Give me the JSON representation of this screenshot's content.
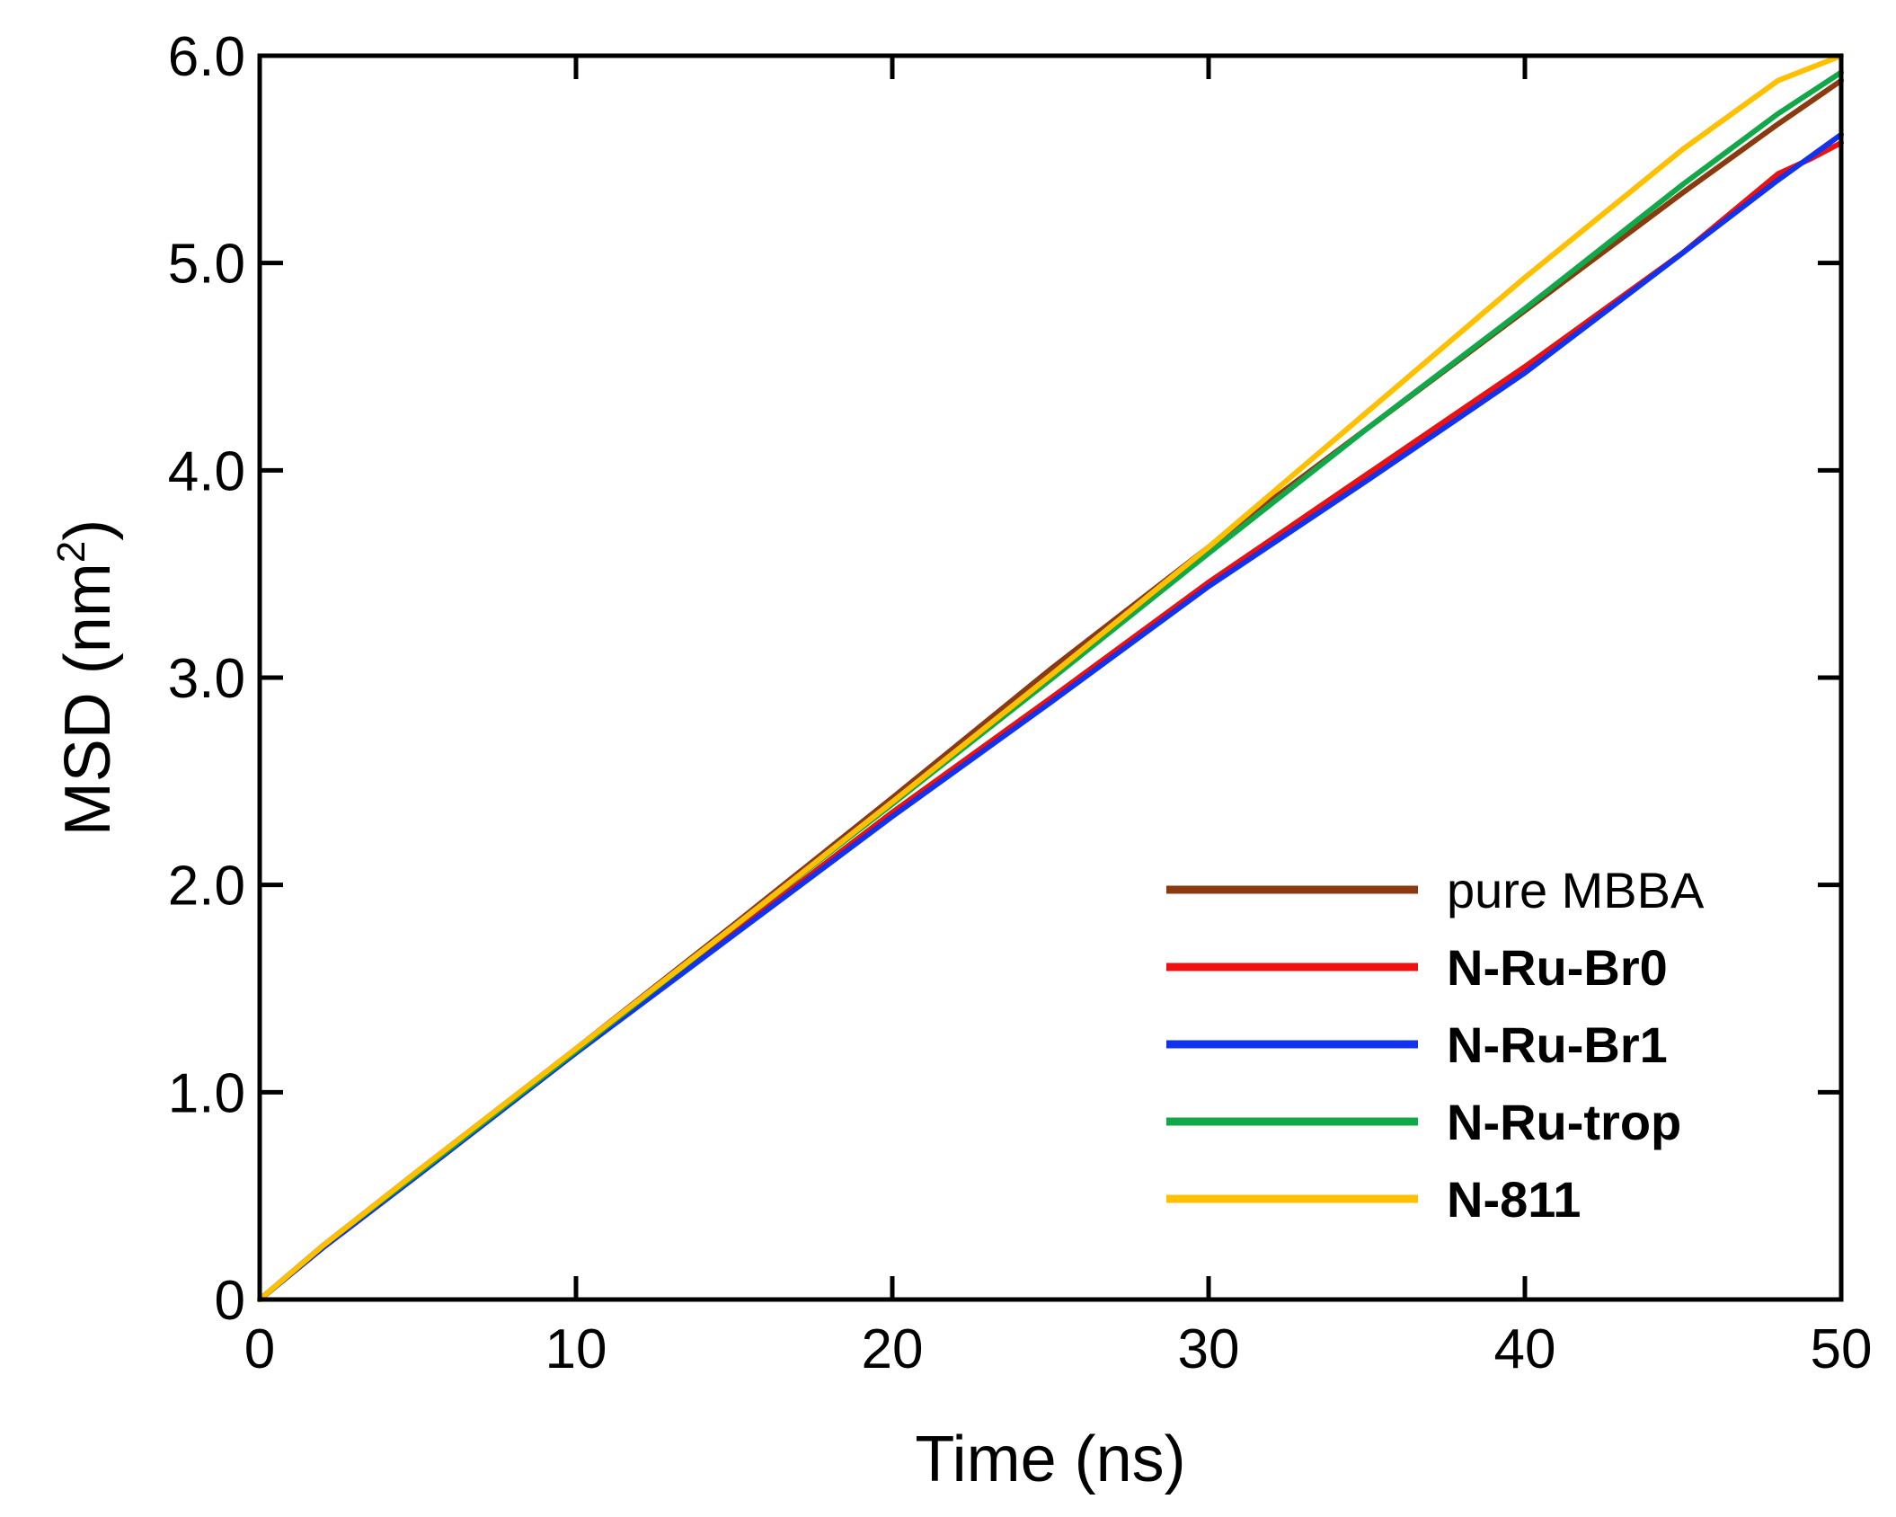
{
  "chart_data": {
    "type": "line",
    "xlabel": "Time (ns)",
    "ylabel_main": "MSD (nm",
    "ylabel_sup": "2",
    "ylabel_close": ")",
    "xlim": [
      0,
      50
    ],
    "ylim": [
      0,
      6.0
    ],
    "xticks": [
      0,
      10,
      20,
      30,
      40,
      50
    ],
    "xtick_labels": [
      "0",
      "10",
      "20",
      "30",
      "40",
      "50"
    ],
    "yticks": [
      0,
      1.0,
      2.0,
      3.0,
      4.0,
      5.0,
      6.0
    ],
    "ytick_labels": [
      "0",
      "1.0",
      "2.0",
      "3.0",
      "4.0",
      "5.0",
      "6.0"
    ],
    "grid": false,
    "legend_position": "bottom-right",
    "series": [
      {
        "name": "pure MBBA",
        "bold": false,
        "color": "#8B3A0F",
        "x": [
          0,
          2,
          5,
          10,
          15,
          20,
          25,
          30,
          35,
          40,
          45,
          48,
          50
        ],
        "y": [
          0,
          0.26,
          0.62,
          1.21,
          1.81,
          2.42,
          3.04,
          3.63,
          4.2,
          4.77,
          5.34,
          5.67,
          5.88
        ]
      },
      {
        "name": "N-Ru-Br0",
        "bold": true,
        "color": "#EE1111",
        "x": [
          0,
          2,
          5,
          10,
          15,
          20,
          25,
          30,
          35,
          40,
          45,
          48,
          49,
          50
        ],
        "y": [
          0,
          0.25,
          0.6,
          1.19,
          1.77,
          2.35,
          2.9,
          3.46,
          3.98,
          4.5,
          5.05,
          5.43,
          5.5,
          5.58
        ]
      },
      {
        "name": "N-Ru-Br1",
        "bold": true,
        "color": "#1133EE",
        "x": [
          0,
          2,
          5,
          10,
          15,
          20,
          25,
          30,
          35,
          40,
          45,
          48,
          50
        ],
        "y": [
          0,
          0.25,
          0.6,
          1.19,
          1.76,
          2.33,
          2.88,
          3.44,
          3.95,
          4.47,
          5.05,
          5.4,
          5.62
        ]
      },
      {
        "name": "N-Ru-trop",
        "bold": true,
        "color": "#11A84A",
        "x": [
          0,
          2,
          5,
          10,
          15,
          20,
          25,
          30,
          35,
          40,
          45,
          48,
          50
        ],
        "y": [
          0,
          0.26,
          0.61,
          1.2,
          1.8,
          2.39,
          2.99,
          3.6,
          4.2,
          4.78,
          5.38,
          5.72,
          5.92
        ]
      },
      {
        "name": "N-811",
        "bold": true,
        "color": "#FFC000",
        "x": [
          0,
          2,
          5,
          10,
          15,
          20,
          25,
          30,
          35,
          40,
          45,
          48,
          50
        ],
        "y": [
          0,
          0.26,
          0.62,
          1.21,
          1.8,
          2.4,
          3.01,
          3.63,
          4.28,
          4.93,
          5.55,
          5.88,
          6.0
        ]
      }
    ]
  }
}
